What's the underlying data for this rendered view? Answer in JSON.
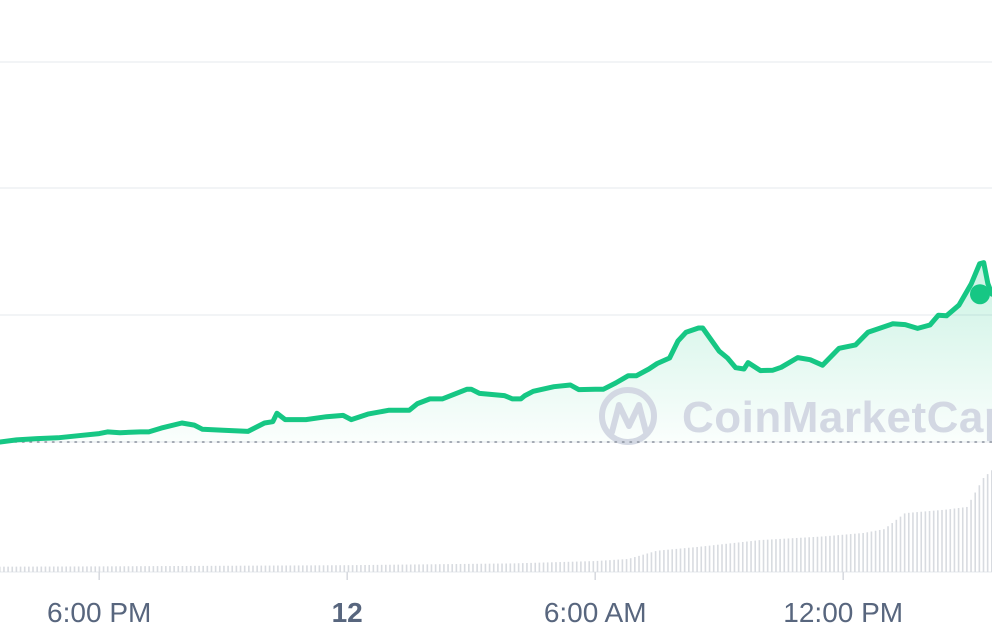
{
  "chart_data": {
    "type": "line",
    "title": "",
    "xlabel": "",
    "ylabel": "",
    "x_ticks": [
      {
        "label": "6:00 PM",
        "bold": false,
        "t": 0
      },
      {
        "label": "12",
        "bold": true,
        "t": 6
      },
      {
        "label": "6:00 AM",
        "bold": false,
        "t": 12
      },
      {
        "label": "12:00 PM",
        "bold": false,
        "t": 18
      }
    ],
    "x_range_hours": [
      -2.4,
      21.6
    ],
    "grid": "horizontal",
    "y_gridline_values": [
      100,
      125,
      150,
      175
    ],
    "y_range": [
      100,
      190
    ],
    "baseline_value": 100,
    "colors": {
      "line": "#16c784",
      "area_top": "#16c784",
      "baseline": "#8a919e",
      "volume": "#d8dbe0",
      "grid": "#eef0f3",
      "tick_label": "#58667e",
      "watermark": "#d3d8e3"
    },
    "series": [
      {
        "points": [
          [
            -2.4,
            100
          ],
          [
            -2.0,
            100.5
          ],
          [
            -1.5,
            100.8
          ],
          [
            -1.0,
            101.0
          ],
          [
            -0.5,
            101.5
          ],
          [
            0.0,
            102.0
          ],
          [
            0.2,
            102.4
          ],
          [
            0.5,
            102.2
          ],
          [
            1.0,
            102.4
          ],
          [
            1.2,
            102.4
          ],
          [
            1.5,
            103.3
          ],
          [
            2.0,
            104.5
          ],
          [
            2.3,
            104.0
          ],
          [
            2.5,
            103.0
          ],
          [
            3.0,
            102.8
          ],
          [
            3.6,
            102.5
          ],
          [
            4.0,
            104.5
          ],
          [
            4.2,
            104.8
          ],
          [
            4.3,
            106.8
          ],
          [
            4.5,
            105.3
          ],
          [
            5.0,
            105.3
          ],
          [
            5.5,
            106.0
          ],
          [
            5.9,
            106.3
          ],
          [
            6.1,
            105.3
          ],
          [
            6.5,
            106.6
          ],
          [
            7.0,
            107.5
          ],
          [
            7.5,
            107.5
          ],
          [
            7.7,
            109.1
          ],
          [
            8.0,
            110.2
          ],
          [
            8.3,
            110.2
          ],
          [
            8.9,
            112.5
          ],
          [
            9.0,
            112.5
          ],
          [
            9.2,
            111.5
          ],
          [
            9.8,
            111.0
          ],
          [
            10.0,
            110.2
          ],
          [
            10.2,
            110.2
          ],
          [
            10.3,
            111.0
          ],
          [
            10.5,
            112.0
          ],
          [
            11.0,
            113.1
          ],
          [
            11.4,
            113.5
          ],
          [
            11.6,
            112.4
          ],
          [
            12.0,
            112.5
          ],
          [
            12.2,
            112.5
          ],
          [
            12.5,
            114.0
          ],
          [
            12.8,
            115.7
          ],
          [
            13.0,
            115.7
          ],
          [
            13.3,
            117.3
          ],
          [
            13.5,
            118.6
          ],
          [
            13.8,
            119.9
          ],
          [
            14.0,
            123.9
          ],
          [
            14.2,
            126.0
          ],
          [
            14.5,
            127.0
          ],
          [
            14.6,
            127.0
          ],
          [
            15.0,
            121.5
          ],
          [
            15.2,
            119.9
          ],
          [
            15.4,
            117.6
          ],
          [
            15.6,
            117.3
          ],
          [
            15.7,
            118.8
          ],
          [
            16.0,
            116.9
          ],
          [
            16.3,
            117.0
          ],
          [
            16.5,
            117.7
          ],
          [
            16.9,
            120.0
          ],
          [
            17.2,
            119.5
          ],
          [
            17.5,
            118.2
          ],
          [
            17.9,
            122.2
          ],
          [
            18.3,
            123.0
          ],
          [
            18.6,
            126.0
          ],
          [
            19.2,
            128.0
          ],
          [
            19.5,
            127.8
          ],
          [
            19.8,
            126.9
          ],
          [
            20.1,
            127.7
          ],
          [
            20.3,
            130.0
          ],
          [
            20.5,
            129.9
          ],
          [
            20.8,
            132.4
          ],
          [
            21.1,
            137.5
          ],
          [
            21.3,
            142.2
          ],
          [
            21.4,
            142.5
          ],
          [
            21.5,
            137.5
          ],
          [
            21.6,
            135.0
          ]
        ]
      }
    ],
    "volume": {
      "start": -2.4,
      "end": 21.6,
      "bar_count": 240,
      "low_level": 1.8,
      "scale_max": 100,
      "profile": [
        [
          -2.4,
          1.8
        ],
        [
          0.0,
          1.9
        ],
        [
          6.0,
          2.3
        ],
        [
          10.0,
          2.9
        ],
        [
          12.0,
          3.7
        ],
        [
          12.8,
          4.4
        ],
        [
          13.5,
          7.2
        ],
        [
          14.5,
          8.5
        ],
        [
          16.0,
          10.8
        ],
        [
          17.5,
          12.0
        ],
        [
          18.5,
          13.2
        ],
        [
          19.0,
          14.5
        ],
        [
          19.5,
          19.9
        ],
        [
          20.0,
          20.5
        ],
        [
          20.5,
          21.1
        ],
        [
          21.0,
          22.0
        ],
        [
          21.4,
          31.8
        ],
        [
          21.6,
          34.4
        ]
      ]
    },
    "annotations": [
      {
        "type": "end-marker",
        "x": 21.6,
        "y": 135.0
      }
    ]
  },
  "watermark": {
    "text": "CoinMarketCap",
    "icon": "coinmarketcap-logo-icon"
  }
}
